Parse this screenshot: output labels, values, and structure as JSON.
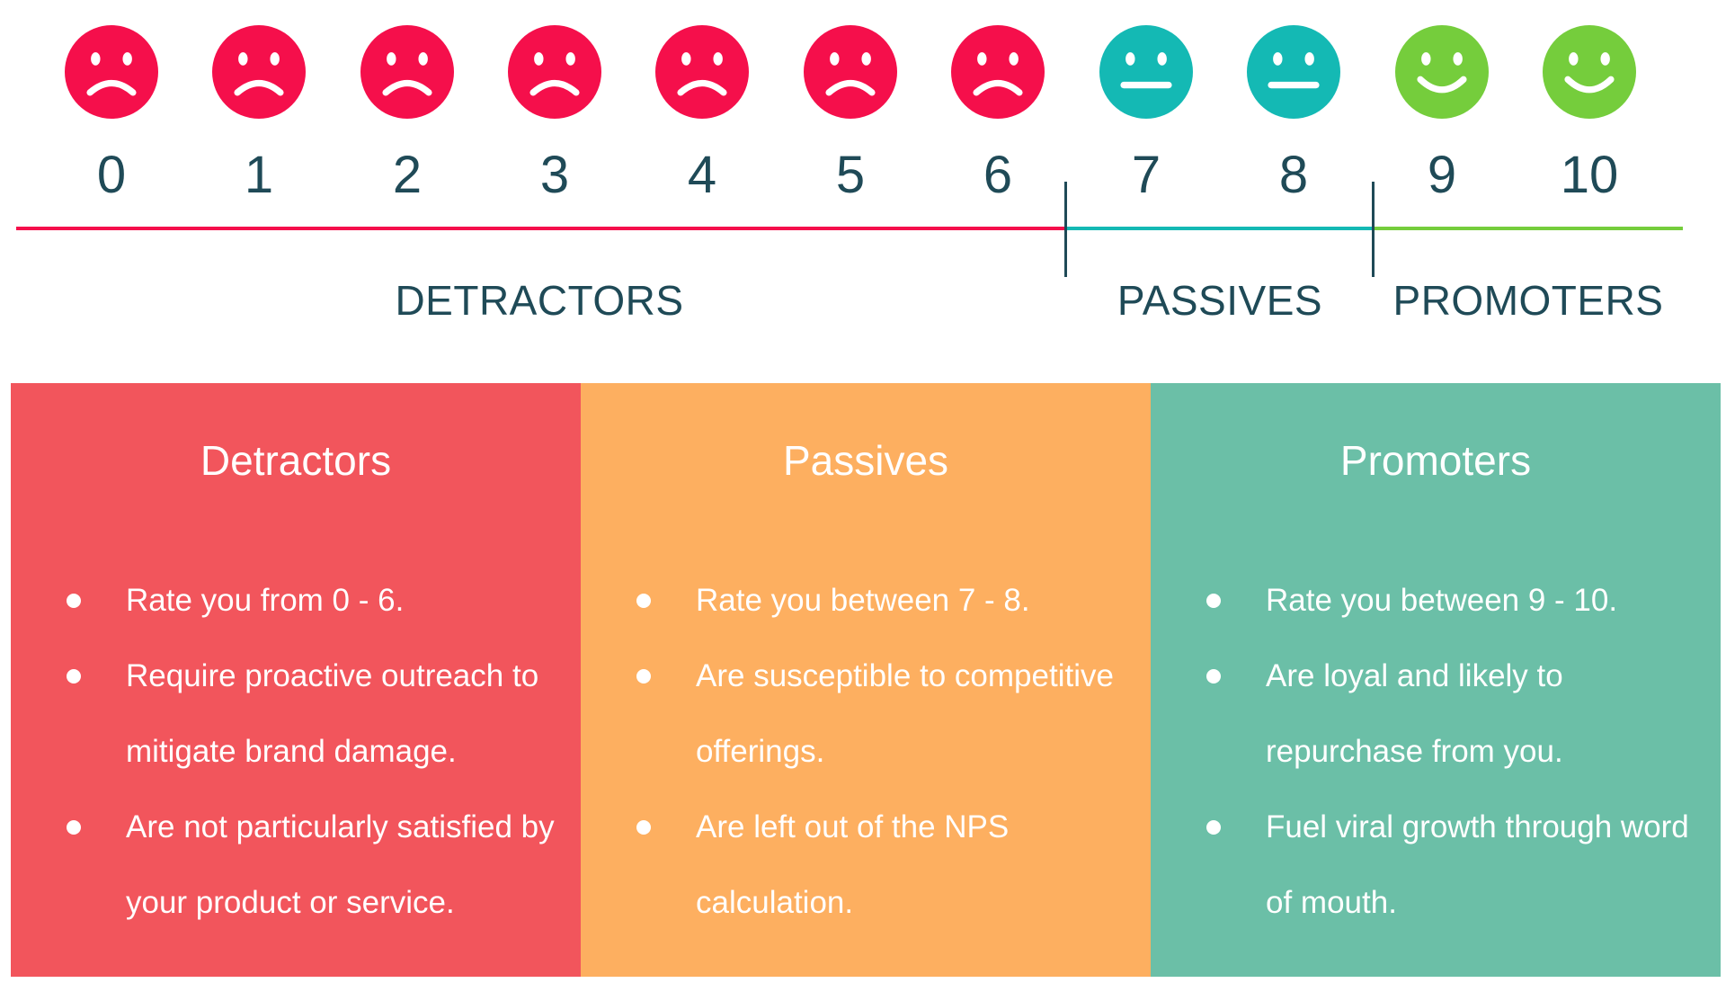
{
  "scale": {
    "points": [
      {
        "score": "0",
        "mood": "sad",
        "color": "#f50f4b"
      },
      {
        "score": "1",
        "mood": "sad",
        "color": "#f50f4b"
      },
      {
        "score": "2",
        "mood": "sad",
        "color": "#f50f4b"
      },
      {
        "score": "3",
        "mood": "sad",
        "color": "#f50f4b"
      },
      {
        "score": "4",
        "mood": "sad",
        "color": "#f50f4b"
      },
      {
        "score": "5",
        "mood": "sad",
        "color": "#f50f4b"
      },
      {
        "score": "6",
        "mood": "sad",
        "color": "#f50f4b"
      },
      {
        "score": "7",
        "mood": "neutral",
        "color": "#14b9b4"
      },
      {
        "score": "8",
        "mood": "neutral",
        "color": "#14b9b4"
      },
      {
        "score": "9",
        "mood": "happy",
        "color": "#75cd3c"
      },
      {
        "score": "10",
        "mood": "happy",
        "color": "#75cd3c"
      }
    ],
    "groups": [
      {
        "label": "DETRACTORS",
        "color": "#f50f4b"
      },
      {
        "label": "PASSIVES",
        "color": "#14b9b4"
      },
      {
        "label": "PROMOTERS",
        "color": "#75cd3c"
      }
    ],
    "text_color": "#1f4a57"
  },
  "cards": [
    {
      "title": "Detractors",
      "color": "#f2555c",
      "items": [
        "Rate you from 0 - 6.",
        "Require proactive outreach to mitigate brand damage.",
        "Are not particularly satisfied by your product or service."
      ]
    },
    {
      "title": "Passives",
      "color": "#fdaf60",
      "items": [
        "Rate you between 7 - 8.",
        "Are susceptible to competitive offerings.",
        "Are left out of the NPS calculation."
      ]
    },
    {
      "title": "Promoters",
      "color": "#6bbfa7",
      "items": [
        "Rate you between 9 - 10.",
        "Are loyal and likely to repurchase from you.",
        "Fuel viral growth through word of mouth."
      ]
    }
  ]
}
